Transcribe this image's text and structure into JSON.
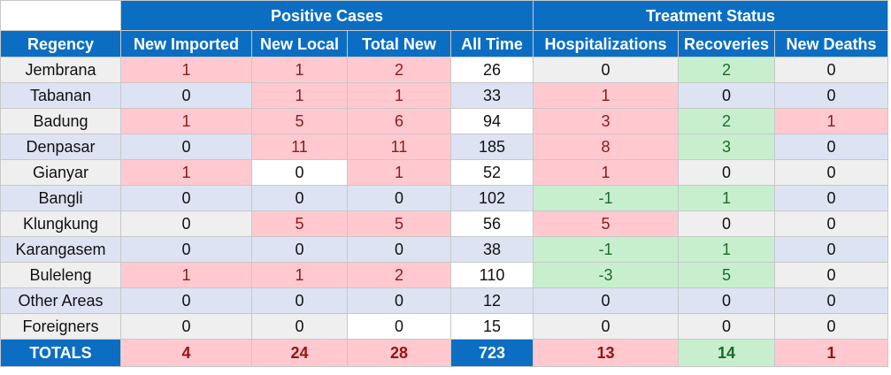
{
  "groups": {
    "positive_cases": "Positive Cases",
    "treatment_status": "Treatment Status"
  },
  "headers": [
    "Regency",
    "New Imported",
    "New Local",
    "Total New",
    "All Time",
    "Hospitalizations",
    "Recoveries",
    "New Deaths"
  ],
  "rows": [
    {
      "regency": "Jembrana",
      "new_imported": "1",
      "new_local": "1",
      "total_new": "2",
      "all_time": "26",
      "hospitalizations": "0",
      "recoveries": "2",
      "new_deaths": "0"
    },
    {
      "regency": "Tabanan",
      "new_imported": "0",
      "new_local": "1",
      "total_new": "1",
      "all_time": "33",
      "hospitalizations": "1",
      "recoveries": "0",
      "new_deaths": "0"
    },
    {
      "regency": "Badung",
      "new_imported": "1",
      "new_local": "5",
      "total_new": "6",
      "all_time": "94",
      "hospitalizations": "3",
      "recoveries": "2",
      "new_deaths": "1"
    },
    {
      "regency": "Denpasar",
      "new_imported": "0",
      "new_local": "11",
      "total_new": "11",
      "all_time": "185",
      "hospitalizations": "8",
      "recoveries": "3",
      "new_deaths": "0"
    },
    {
      "regency": "Gianyar",
      "new_imported": "1",
      "new_local": "0",
      "total_new": "1",
      "all_time": "52",
      "hospitalizations": "1",
      "recoveries": "0",
      "new_deaths": "0"
    },
    {
      "regency": "Bangli",
      "new_imported": "0",
      "new_local": "0",
      "total_new": "0",
      "all_time": "102",
      "hospitalizations": "-1",
      "recoveries": "1",
      "new_deaths": "0"
    },
    {
      "regency": "Klungkung",
      "new_imported": "0",
      "new_local": "5",
      "total_new": "5",
      "all_time": "56",
      "hospitalizations": "5",
      "recoveries": "0",
      "new_deaths": "0"
    },
    {
      "regency": "Karangasem",
      "new_imported": "0",
      "new_local": "0",
      "total_new": "0",
      "all_time": "38",
      "hospitalizations": "-1",
      "recoveries": "1",
      "new_deaths": "0"
    },
    {
      "regency": "Buleleng",
      "new_imported": "1",
      "new_local": "1",
      "total_new": "2",
      "all_time": "110",
      "hospitalizations": "-3",
      "recoveries": "5",
      "new_deaths": "0"
    },
    {
      "regency": "Other Areas",
      "new_imported": "0",
      "new_local": "0",
      "total_new": "0",
      "all_time": "12",
      "hospitalizations": "0",
      "recoveries": "0",
      "new_deaths": "0"
    },
    {
      "regency": "Foreigners",
      "new_imported": "0",
      "new_local": "0",
      "total_new": "0",
      "all_time": "15",
      "hospitalizations": "0",
      "recoveries": "0",
      "new_deaths": "0"
    }
  ],
  "totals": {
    "label": "TOTALS",
    "new_imported": "4",
    "new_local": "24",
    "total_new": "28",
    "all_time": "723",
    "hospitalizations": "13",
    "recoveries": "14",
    "new_deaths": "1"
  },
  "colors": {
    "header_blue": "#0b6ec3",
    "increase_pink": "#ffc9cf",
    "decrease_green": "#c7efce",
    "row_blue": "#dde3f3",
    "row_gray": "#efefef"
  }
}
